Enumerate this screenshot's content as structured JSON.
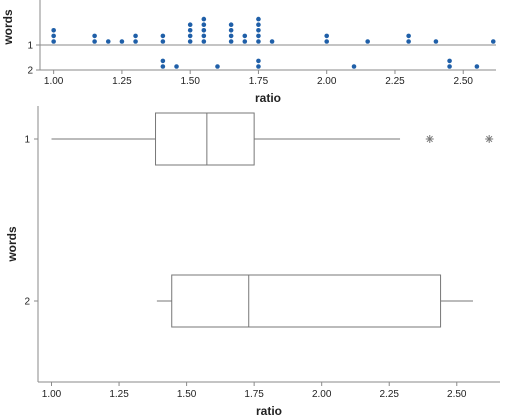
{
  "chart_data": [
    {
      "type": "dotplot",
      "xlabel": "ratio",
      "ylabel": "words",
      "xlim": [
        0.95,
        2.62
      ],
      "x_ticks": [
        "1.00",
        "1.25",
        "1.50",
        "1.75",
        "2.00",
        "2.25",
        "2.50"
      ],
      "x_tick_values": [
        1.0,
        1.25,
        1.5,
        1.75,
        2.0,
        2.25,
        2.5
      ],
      "categories": [
        "1",
        "2"
      ],
      "color": "#1f5fa8",
      "stacks": [
        {
          "group": "1",
          "x": 1.0,
          "count": 3
        },
        {
          "group": "1",
          "x": 1.15,
          "count": 2
        },
        {
          "group": "1",
          "x": 1.2,
          "count": 1
        },
        {
          "group": "1",
          "x": 1.25,
          "count": 1
        },
        {
          "group": "1",
          "x": 1.3,
          "count": 2
        },
        {
          "group": "1",
          "x": 1.4,
          "count": 2
        },
        {
          "group": "1",
          "x": 1.5,
          "count": 4
        },
        {
          "group": "1",
          "x": 1.55,
          "count": 5
        },
        {
          "group": "1",
          "x": 1.65,
          "count": 4
        },
        {
          "group": "1",
          "x": 1.7,
          "count": 2
        },
        {
          "group": "1",
          "x": 1.75,
          "count": 5
        },
        {
          "group": "1",
          "x": 1.8,
          "count": 1
        },
        {
          "group": "1",
          "x": 2.0,
          "count": 2
        },
        {
          "group": "1",
          "x": 2.15,
          "count": 1
        },
        {
          "group": "1",
          "x": 2.3,
          "count": 2
        },
        {
          "group": "1",
          "x": 2.4,
          "count": 1
        },
        {
          "group": "1",
          "x": 2.61,
          "count": 1
        },
        {
          "group": "2",
          "x": 1.4,
          "count": 2
        },
        {
          "group": "2",
          "x": 1.45,
          "count": 1
        },
        {
          "group": "2",
          "x": 1.6,
          "count": 1
        },
        {
          "group": "2",
          "x": 1.75,
          "count": 2
        },
        {
          "group": "2",
          "x": 2.1,
          "count": 1
        },
        {
          "group": "2",
          "x": 2.45,
          "count": 2
        },
        {
          "group": "2",
          "x": 2.55,
          "count": 1
        }
      ]
    },
    {
      "type": "boxplot",
      "xlabel": "ratio",
      "ylabel": "words",
      "xlim": [
        0.95,
        2.66
      ],
      "x_ticks": [
        "1.00",
        "1.25",
        "1.50",
        "1.75",
        "2.00",
        "2.25",
        "2.50"
      ],
      "x_tick_values": [
        1.0,
        1.25,
        1.5,
        1.75,
        2.0,
        2.25,
        2.5
      ],
      "categories": [
        "1",
        "2"
      ],
      "boxes": [
        {
          "group": "1",
          "whisker_low": 1.0,
          "q1": 1.385,
          "median": 1.575,
          "q3": 1.75,
          "whisker_high": 2.29,
          "outliers": [
            2.4,
            2.62
          ]
        },
        {
          "group": "2",
          "whisker_low": 1.39,
          "q1": 1.445,
          "median": 1.73,
          "q3": 2.44,
          "whisker_high": 2.56,
          "outliers": []
        }
      ]
    }
  ]
}
